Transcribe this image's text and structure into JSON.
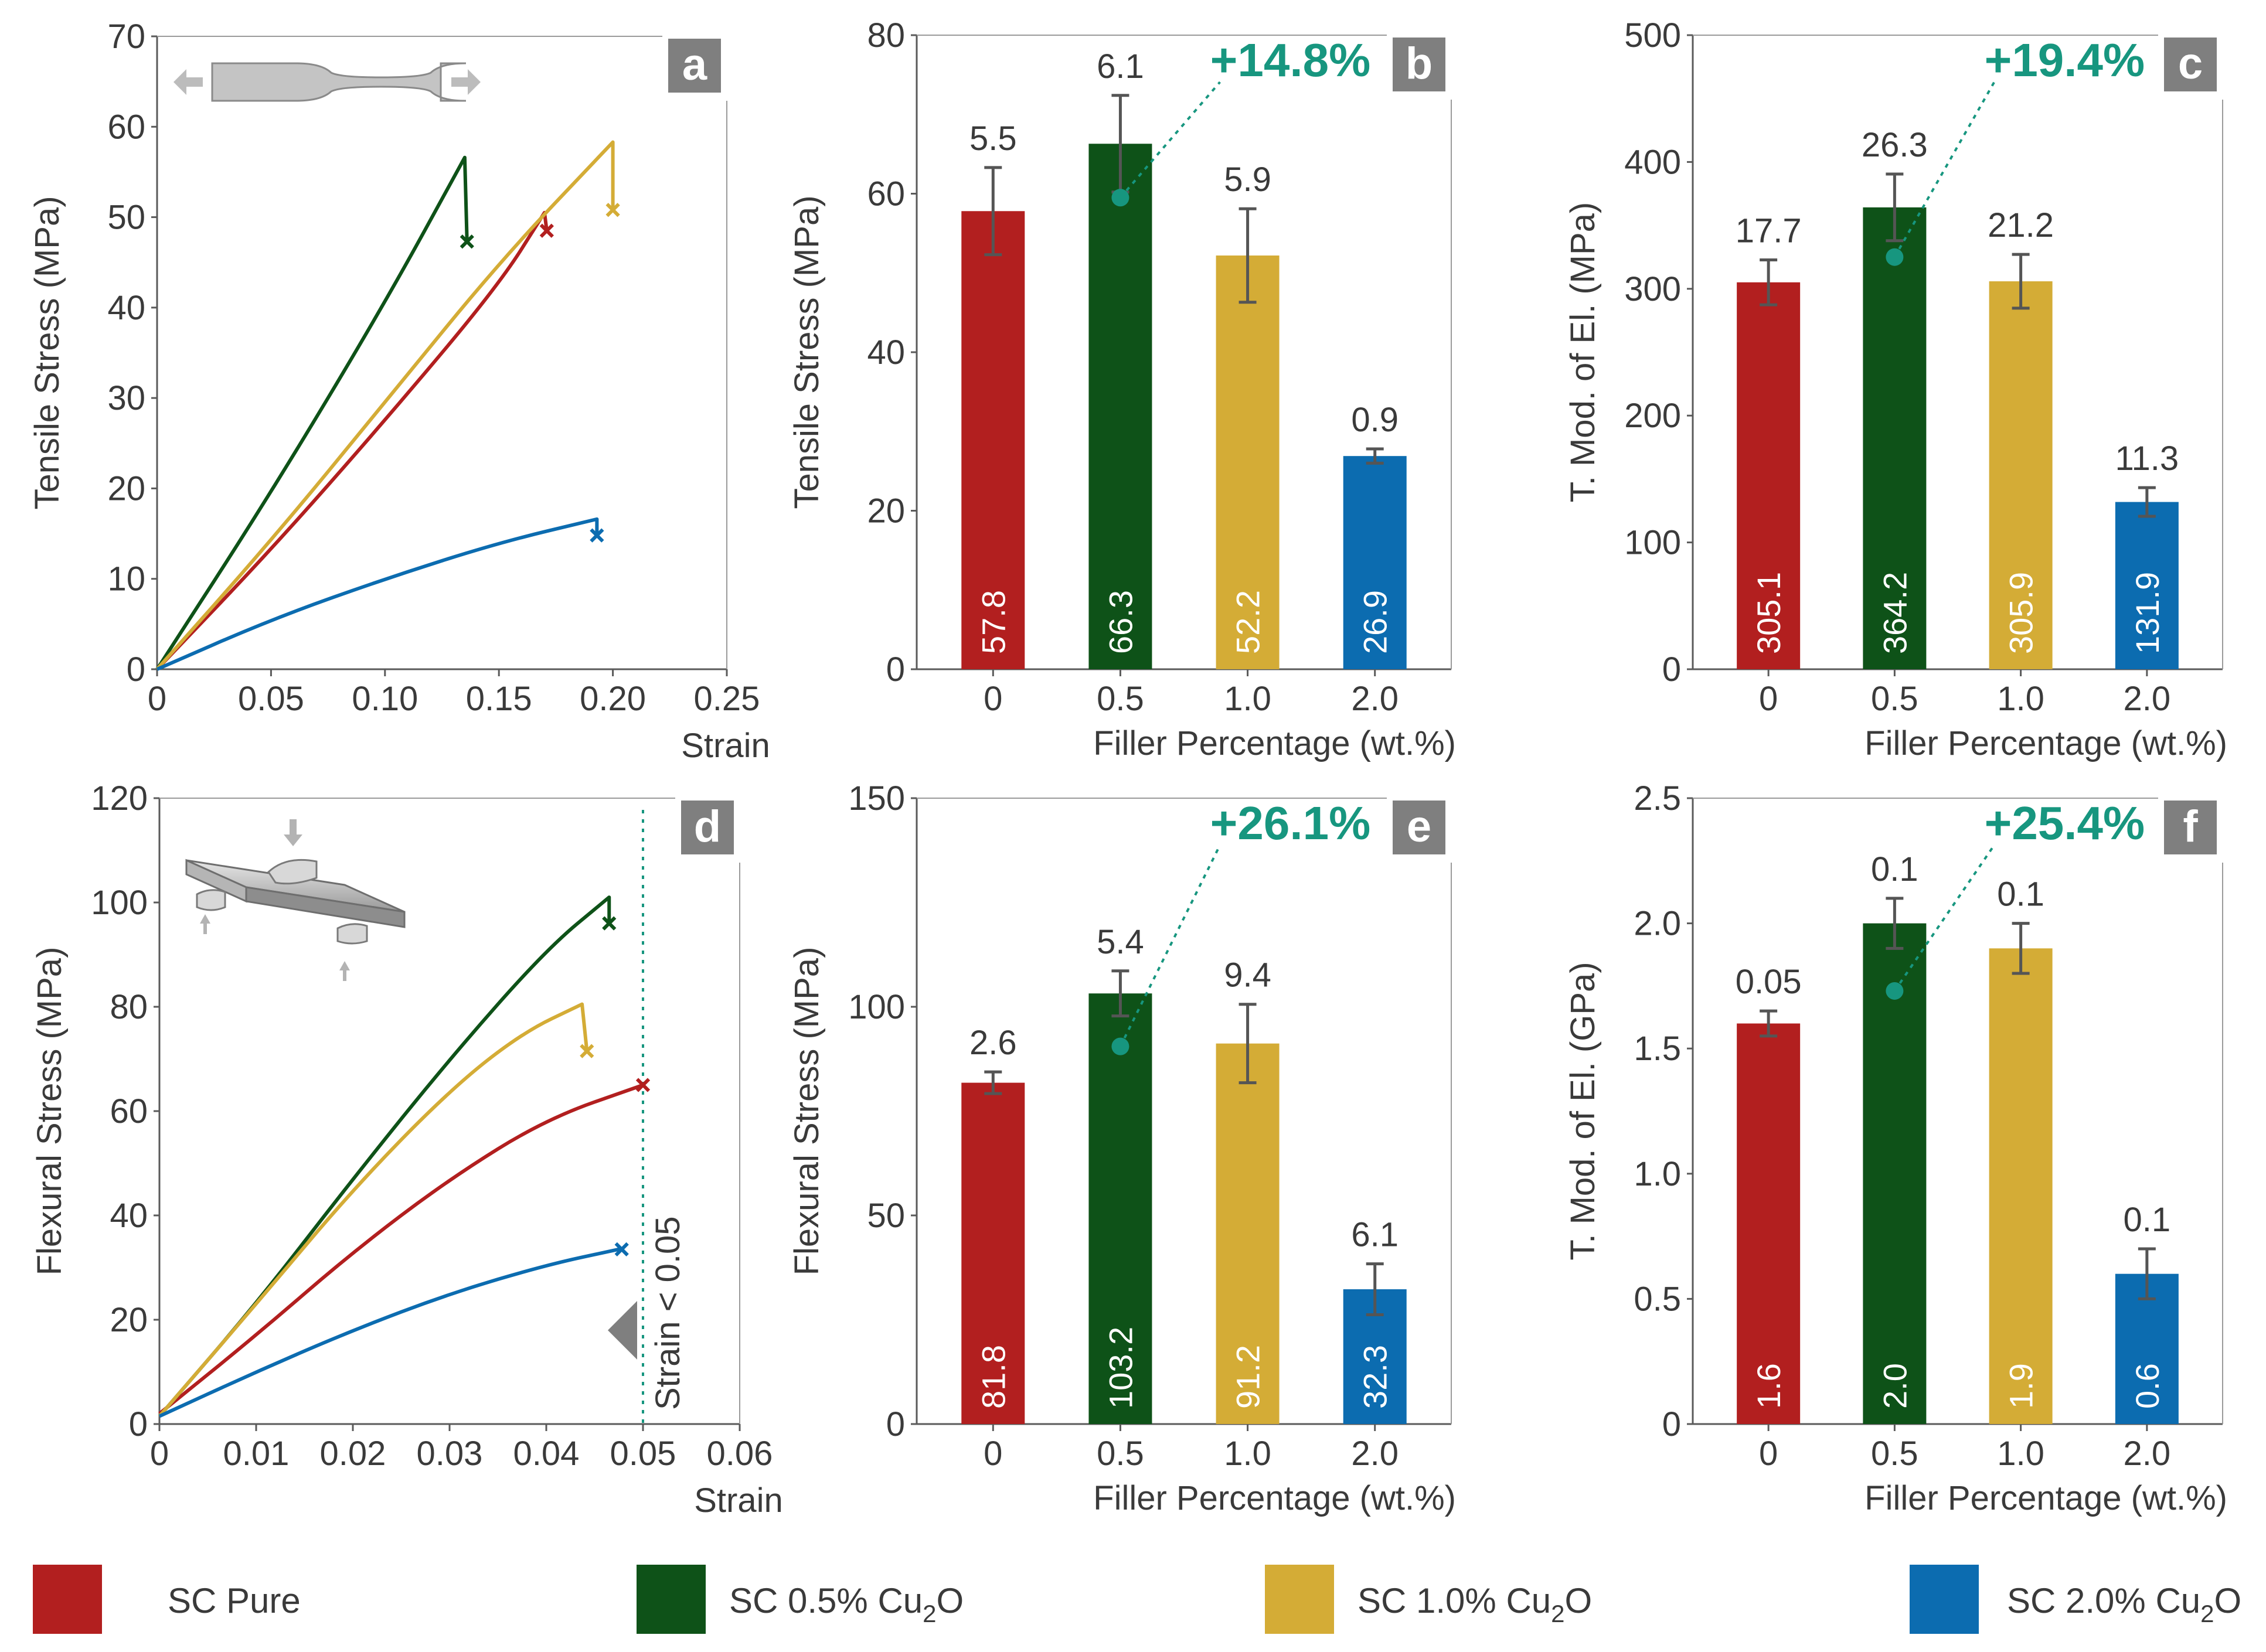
{
  "colors": {
    "pure": "#b21f1f",
    "c05": "#0e5218",
    "c10": "#d4ac36",
    "c20": "#0c6cb0",
    "accent": "#17967f",
    "badge": "#7f7f7f",
    "axis": "#5a5a5a",
    "error": "#555555"
  },
  "legend": [
    {
      "key": "pure",
      "label": "SC Pure"
    },
    {
      "key": "c05",
      "label": "SC 0.5% Cu",
      "sub": "2",
      "tail": "O"
    },
    {
      "key": "c10",
      "label": "SC 1.0% Cu",
      "sub": "2",
      "tail": "O"
    },
    {
      "key": "c20",
      "label": "SC 2.0% Cu",
      "sub": "2",
      "tail": "O"
    }
  ],
  "chart_data": [
    {
      "id": "a",
      "type": "line",
      "badge": "a",
      "xlabel": "Strain",
      "ylabel": "Tensile Stress (MPa)",
      "xlim": [
        0,
        0.25
      ],
      "ylim": [
        0,
        70
      ],
      "xticks": [
        0,
        0.05,
        0.1,
        0.15,
        0.2,
        0.25
      ],
      "xtick_labels": [
        "0",
        "0.05",
        "0.10",
        "0.15",
        "0.20",
        "0.25"
      ],
      "yticks": [
        0,
        10,
        20,
        30,
        40,
        50,
        60,
        70
      ],
      "ytick_labels": [
        "0",
        "10",
        "20",
        "30",
        "40",
        "50",
        "60",
        "70"
      ],
      "series": [
        {
          "name": "SC Pure",
          "key": "pure",
          "points": [
            [
              0,
              0
            ],
            [
              0.05,
              13.2
            ],
            [
              0.1,
              27.5
            ],
            [
              0.15,
              42.5
            ],
            [
              0.17,
              50.5
            ]
          ],
          "fail": [
            0.171,
            48.5
          ]
        },
        {
          "name": "SC 0.5% Cu2O",
          "key": "c05",
          "points": [
            [
              0,
              0
            ],
            [
              0.05,
              19.5
            ],
            [
              0.1,
              40.5
            ],
            [
              0.135,
              56.6
            ]
          ],
          "fail": [
            0.136,
            47.3
          ]
        },
        {
          "name": "SC 1.0% Cu2O",
          "key": "c10",
          "points": [
            [
              0,
              0
            ],
            [
              0.05,
              14.2
            ],
            [
              0.1,
              29.5
            ],
            [
              0.15,
              45
            ],
            [
              0.2,
              58.3
            ]
          ],
          "fail": [
            0.2,
            50.8
          ]
        },
        {
          "name": "SC 2.0% Cu2O",
          "key": "c20",
          "points": [
            [
              0,
              0
            ],
            [
              0.05,
              5.5
            ],
            [
              0.1,
              10
            ],
            [
              0.15,
              14
            ],
            [
              0.193,
              16.6
            ]
          ],
          "fail": [
            0.193,
            14.8
          ]
        }
      ]
    },
    {
      "id": "b",
      "type": "bar",
      "badge": "b",
      "xlabel": "Filler Percentage (wt.%)",
      "ylabel": "Tensile Stress (MPa)",
      "categories": [
        "0",
        "0.5",
        "1.0",
        "2.0"
      ],
      "values": [
        57.8,
        66.3,
        52.2,
        26.9
      ],
      "value_labels": [
        "57.8",
        "66.3",
        "52.2",
        "26.9"
      ],
      "errors": [
        5.5,
        6.1,
        5.9,
        0.9
      ],
      "error_labels": [
        "5.5",
        "6.1",
        "5.9",
        "0.9"
      ],
      "ylim": [
        0,
        80
      ],
      "yticks": [
        0,
        20,
        40,
        60,
        80
      ],
      "ytick_labels": [
        "0",
        "20",
        "40",
        "60",
        "80"
      ],
      "annotation": {
        "text": "+14.8%",
        "point": [
          1,
          59.5
        ]
      }
    },
    {
      "id": "c",
      "type": "bar",
      "badge": "c",
      "xlabel": "Filler Percentage (wt.%)",
      "ylabel": "T. Mod. of El. (MPa)",
      "categories": [
        "0",
        "0.5",
        "1.0",
        "2.0"
      ],
      "values": [
        305.1,
        364.2,
        305.9,
        131.9
      ],
      "value_labels": [
        "305.1",
        "364.2",
        "305.9",
        "131.9"
      ],
      "errors": [
        17.7,
        26.3,
        21.2,
        11.3
      ],
      "error_labels": [
        "17.7",
        "26.3",
        "21.2",
        "11.3"
      ],
      "ylim": [
        0,
        500
      ],
      "yticks": [
        0,
        100,
        200,
        300,
        400,
        500
      ],
      "ytick_labels": [
        "0",
        "100",
        "200",
        "300",
        "400",
        "500"
      ],
      "annotation": {
        "text": "+19.4%",
        "point": [
          1,
          325
        ]
      }
    },
    {
      "id": "d",
      "type": "line",
      "badge": "d",
      "xlabel": "Strain",
      "ylabel": "Flexural Stress (MPa)",
      "xlim": [
        0,
        0.06
      ],
      "ylim": [
        0,
        120
      ],
      "xticks": [
        0,
        0.01,
        0.02,
        0.03,
        0.04,
        0.05,
        0.06
      ],
      "xtick_labels": [
        "0",
        "0.01",
        "0.02",
        "0.03",
        "0.04",
        "0.05",
        "0.06"
      ],
      "yticks": [
        0,
        20,
        40,
        60,
        80,
        100,
        120
      ],
      "ytick_labels": [
        "0",
        "20",
        "40",
        "60",
        "80",
        "100",
        "120"
      ],
      "vline": {
        "x": 0.05,
        "label": "Strain < 0.05"
      },
      "series": [
        {
          "name": "SC Pure",
          "key": "pure",
          "points": [
            [
              0,
              2
            ],
            [
              0.01,
              17
            ],
            [
              0.02,
              33
            ],
            [
              0.03,
              47
            ],
            [
              0.04,
              58.5
            ],
            [
              0.05,
              65
            ]
          ],
          "fail": [
            0.05,
            65
          ]
        },
        {
          "name": "SC 0.5% Cu2O",
          "key": "c05",
          "points": [
            [
              0,
              1.5
            ],
            [
              0.01,
              23
            ],
            [
              0.02,
              47
            ],
            [
              0.03,
              70
            ],
            [
              0.04,
              91
            ],
            [
              0.0465,
              101
            ]
          ],
          "fail": [
            0.0465,
            96
          ]
        },
        {
          "name": "SC 1.0% Cu2O",
          "key": "c10",
          "points": [
            [
              0,
              1.5
            ],
            [
              0.01,
              23
            ],
            [
              0.02,
              45
            ],
            [
              0.03,
              64
            ],
            [
              0.0375,
              75
            ],
            [
              0.0437,
              80.5
            ]
          ],
          "fail": [
            0.0442,
            71.5
          ]
        },
        {
          "name": "SC 2.0% Cu2O",
          "key": "c20",
          "points": [
            [
              0,
              1.5
            ],
            [
              0.01,
              10
            ],
            [
              0.02,
              18
            ],
            [
              0.03,
              25
            ],
            [
              0.04,
              30.5
            ],
            [
              0.0475,
              33.5
            ]
          ],
          "fail": [
            0.0478,
            33.5
          ]
        }
      ]
    },
    {
      "id": "e",
      "type": "bar",
      "badge": "e",
      "xlabel": "Filler Percentage (wt.%)",
      "ylabel": "Flexural Stress (MPa)",
      "categories": [
        "0",
        "0.5",
        "1.0",
        "2.0"
      ],
      "values": [
        81.8,
        103.2,
        91.2,
        32.3
      ],
      "value_labels": [
        "81.8",
        "103.2",
        "91.2",
        "32.3"
      ],
      "errors": [
        2.6,
        5.4,
        9.4,
        6.1
      ],
      "error_labels": [
        "2.6",
        "5.4",
        "9.4",
        "6.1"
      ],
      "ylim": [
        0,
        150
      ],
      "yticks": [
        0,
        50,
        100,
        150
      ],
      "ytick_labels": [
        "0",
        "50",
        "100",
        "150"
      ],
      "annotation": {
        "text": "+26.1%",
        "point": [
          1,
          90.5
        ]
      }
    },
    {
      "id": "f",
      "type": "bar",
      "badge": "f",
      "xlabel": "Filler Percentage (wt.%)",
      "ylabel": "T. Mod. of El. (GPa)",
      "categories": [
        "0",
        "0.5",
        "1.0",
        "2.0"
      ],
      "values": [
        1.6,
        2.0,
        1.9,
        0.6
      ],
      "value_labels": [
        "1.6",
        "2.0",
        "1.9",
        "0.6"
      ],
      "errors": [
        0.05,
        0.1,
        0.1,
        0.1
      ],
      "error_labels": [
        "0.05",
        "0.1",
        "0.1",
        "0.1"
      ],
      "ylim": [
        0,
        2.5
      ],
      "yticks": [
        0,
        0.5,
        1,
        1.5,
        2,
        2.5
      ],
      "ytick_labels": [
        "0",
        "0.5",
        "1.0",
        "1.5",
        "2.0",
        "2.5"
      ],
      "annotation": {
        "text": "+25.4%",
        "point": [
          1,
          1.73
        ]
      }
    }
  ]
}
